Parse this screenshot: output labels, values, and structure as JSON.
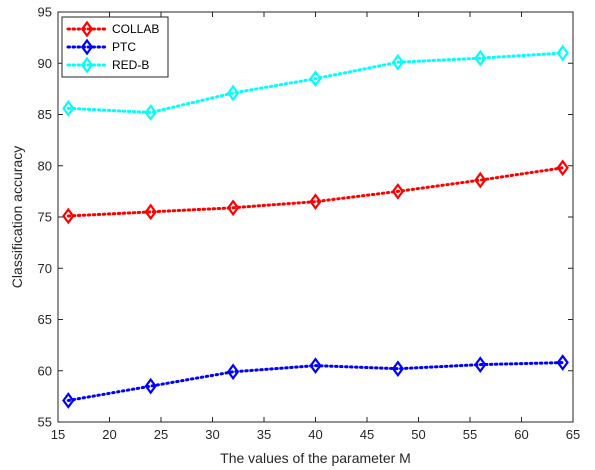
{
  "chart_data": {
    "type": "line",
    "title": "",
    "xlabel": "The values of the parameter M",
    "ylabel": "Classification accuracy",
    "x": [
      16,
      24,
      32,
      40,
      48,
      56,
      64
    ],
    "xlim": [
      15,
      65
    ],
    "ylim": [
      55,
      95
    ],
    "xticks": [
      15,
      20,
      25,
      30,
      35,
      40,
      45,
      50,
      55,
      60,
      65
    ],
    "yticks": [
      55,
      60,
      65,
      70,
      75,
      80,
      85,
      90,
      95
    ],
    "grid": false,
    "legend_position": "top-left",
    "series": [
      {
        "name": "COLLAB",
        "color": "#ff0000",
        "marker": "diamond",
        "line_style": "dotted",
        "values": [
          75.1,
          75.5,
          75.9,
          76.5,
          77.5,
          78.6,
          79.8
        ]
      },
      {
        "name": "PTC",
        "color": "#0000ff",
        "marker": "diamond",
        "line_style": "dotted",
        "values": [
          57.1,
          58.5,
          59.9,
          60.5,
          60.2,
          60.6,
          60.8
        ]
      },
      {
        "name": "RED-B",
        "color": "#00ffff",
        "marker": "diamond",
        "line_style": "dotted",
        "values": [
          85.6,
          85.2,
          87.1,
          88.5,
          90.1,
          90.5,
          91.0
        ]
      }
    ]
  }
}
